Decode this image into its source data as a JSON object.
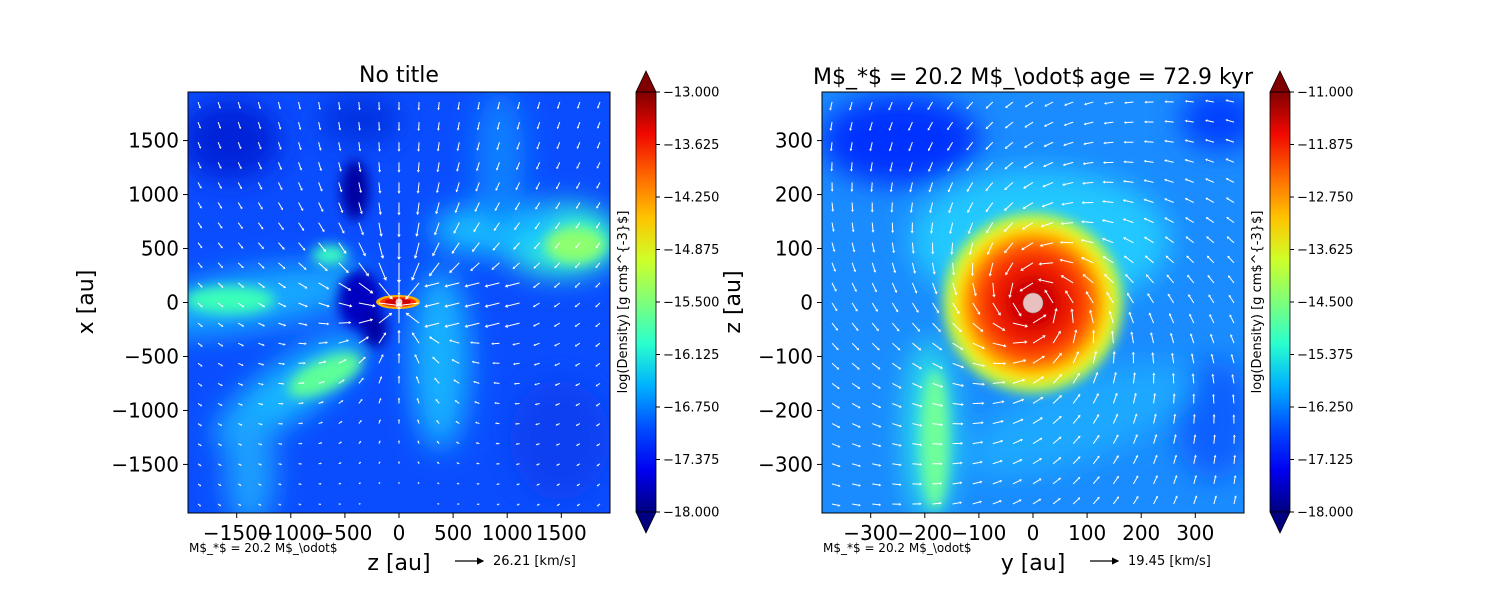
{
  "colors": {
    "colormap": [
      "#000080",
      "#0000f1",
      "#004dff",
      "#00b1ff",
      "#29ffce",
      "#7dff7a",
      "#ceff29",
      "#ffc400",
      "#ff6800",
      "#f10800",
      "#800000"
    ],
    "arrow": "#ffffff"
  },
  "chart_data": [
    {
      "type": "heatmap",
      "title": "No title",
      "xlabel": "z [au]",
      "ylabel": "x [au]",
      "xlim": [
        -1950,
        1950
      ],
      "ylim": [
        -1950,
        1950
      ],
      "xticks": [
        -1500,
        -1000,
        -500,
        0,
        500,
        1000,
        1500
      ],
      "yticks": [
        -1500,
        -1000,
        -500,
        0,
        500,
        1000,
        1500
      ],
      "xtick_labels": [
        "−1500",
        "−1000",
        "−500",
        "0",
        "500",
        "1000",
        "1500"
      ],
      "ytick_labels": [
        "−1500",
        "−1000",
        "−500",
        "0",
        "500",
        "1000",
        "1500"
      ],
      "colorbar": {
        "label": "log(Density) [g cm$^{-3}$]",
        "range": [
          -18.0,
          -13.0
        ],
        "ticks": [
          -13.0,
          -13.625,
          -14.25,
          -14.875,
          -15.5,
          -16.125,
          -16.75,
          -17.375,
          -18.0
        ],
        "tick_labels": [
          "−13.000",
          "−13.625",
          "−14.250",
          "−14.875",
          "−15.500",
          "−16.125",
          "−16.750",
          "−17.375",
          "−18.000"
        ]
      },
      "annotation": "M$_*$ = 20.2 M$_\\odot$",
      "velocity_key": "26.21 [km/s]"
    },
    {
      "type": "heatmap",
      "title_left": "M$_*$ = 20.2 M$_\\odot$",
      "title_right": "age = 72.9 kyr",
      "xlabel": "y [au]",
      "ylabel": "z [au]",
      "xlim": [
        -390,
        390
      ],
      "ylim": [
        -390,
        390
      ],
      "xticks": [
        -300,
        -200,
        -100,
        0,
        100,
        200,
        300
      ],
      "yticks": [
        -300,
        -200,
        -100,
        0,
        100,
        200,
        300
      ],
      "xtick_labels": [
        "−300",
        "−200",
        "−100",
        "0",
        "100",
        "200",
        "300"
      ],
      "ytick_labels": [
        "−300",
        "−200",
        "−100",
        "0",
        "100",
        "200",
        "300"
      ],
      "colorbar": {
        "label": "log(Density) [g cm$^{-3}$]",
        "range": [
          -18.0,
          -11.0
        ],
        "ticks": [
          -11.0,
          -11.875,
          -12.75,
          -13.625,
          -14.5,
          -15.375,
          -16.25,
          -17.125,
          -18.0
        ],
        "tick_labels": [
          "−11.000",
          "−11.875",
          "−12.750",
          "−13.625",
          "−14.500",
          "−15.375",
          "−16.250",
          "−17.125",
          "−18.000"
        ]
      },
      "annotation": "M$_*$ = 20.2 M$_\\odot$",
      "velocity_key": "19.45 [km/s]"
    }
  ]
}
